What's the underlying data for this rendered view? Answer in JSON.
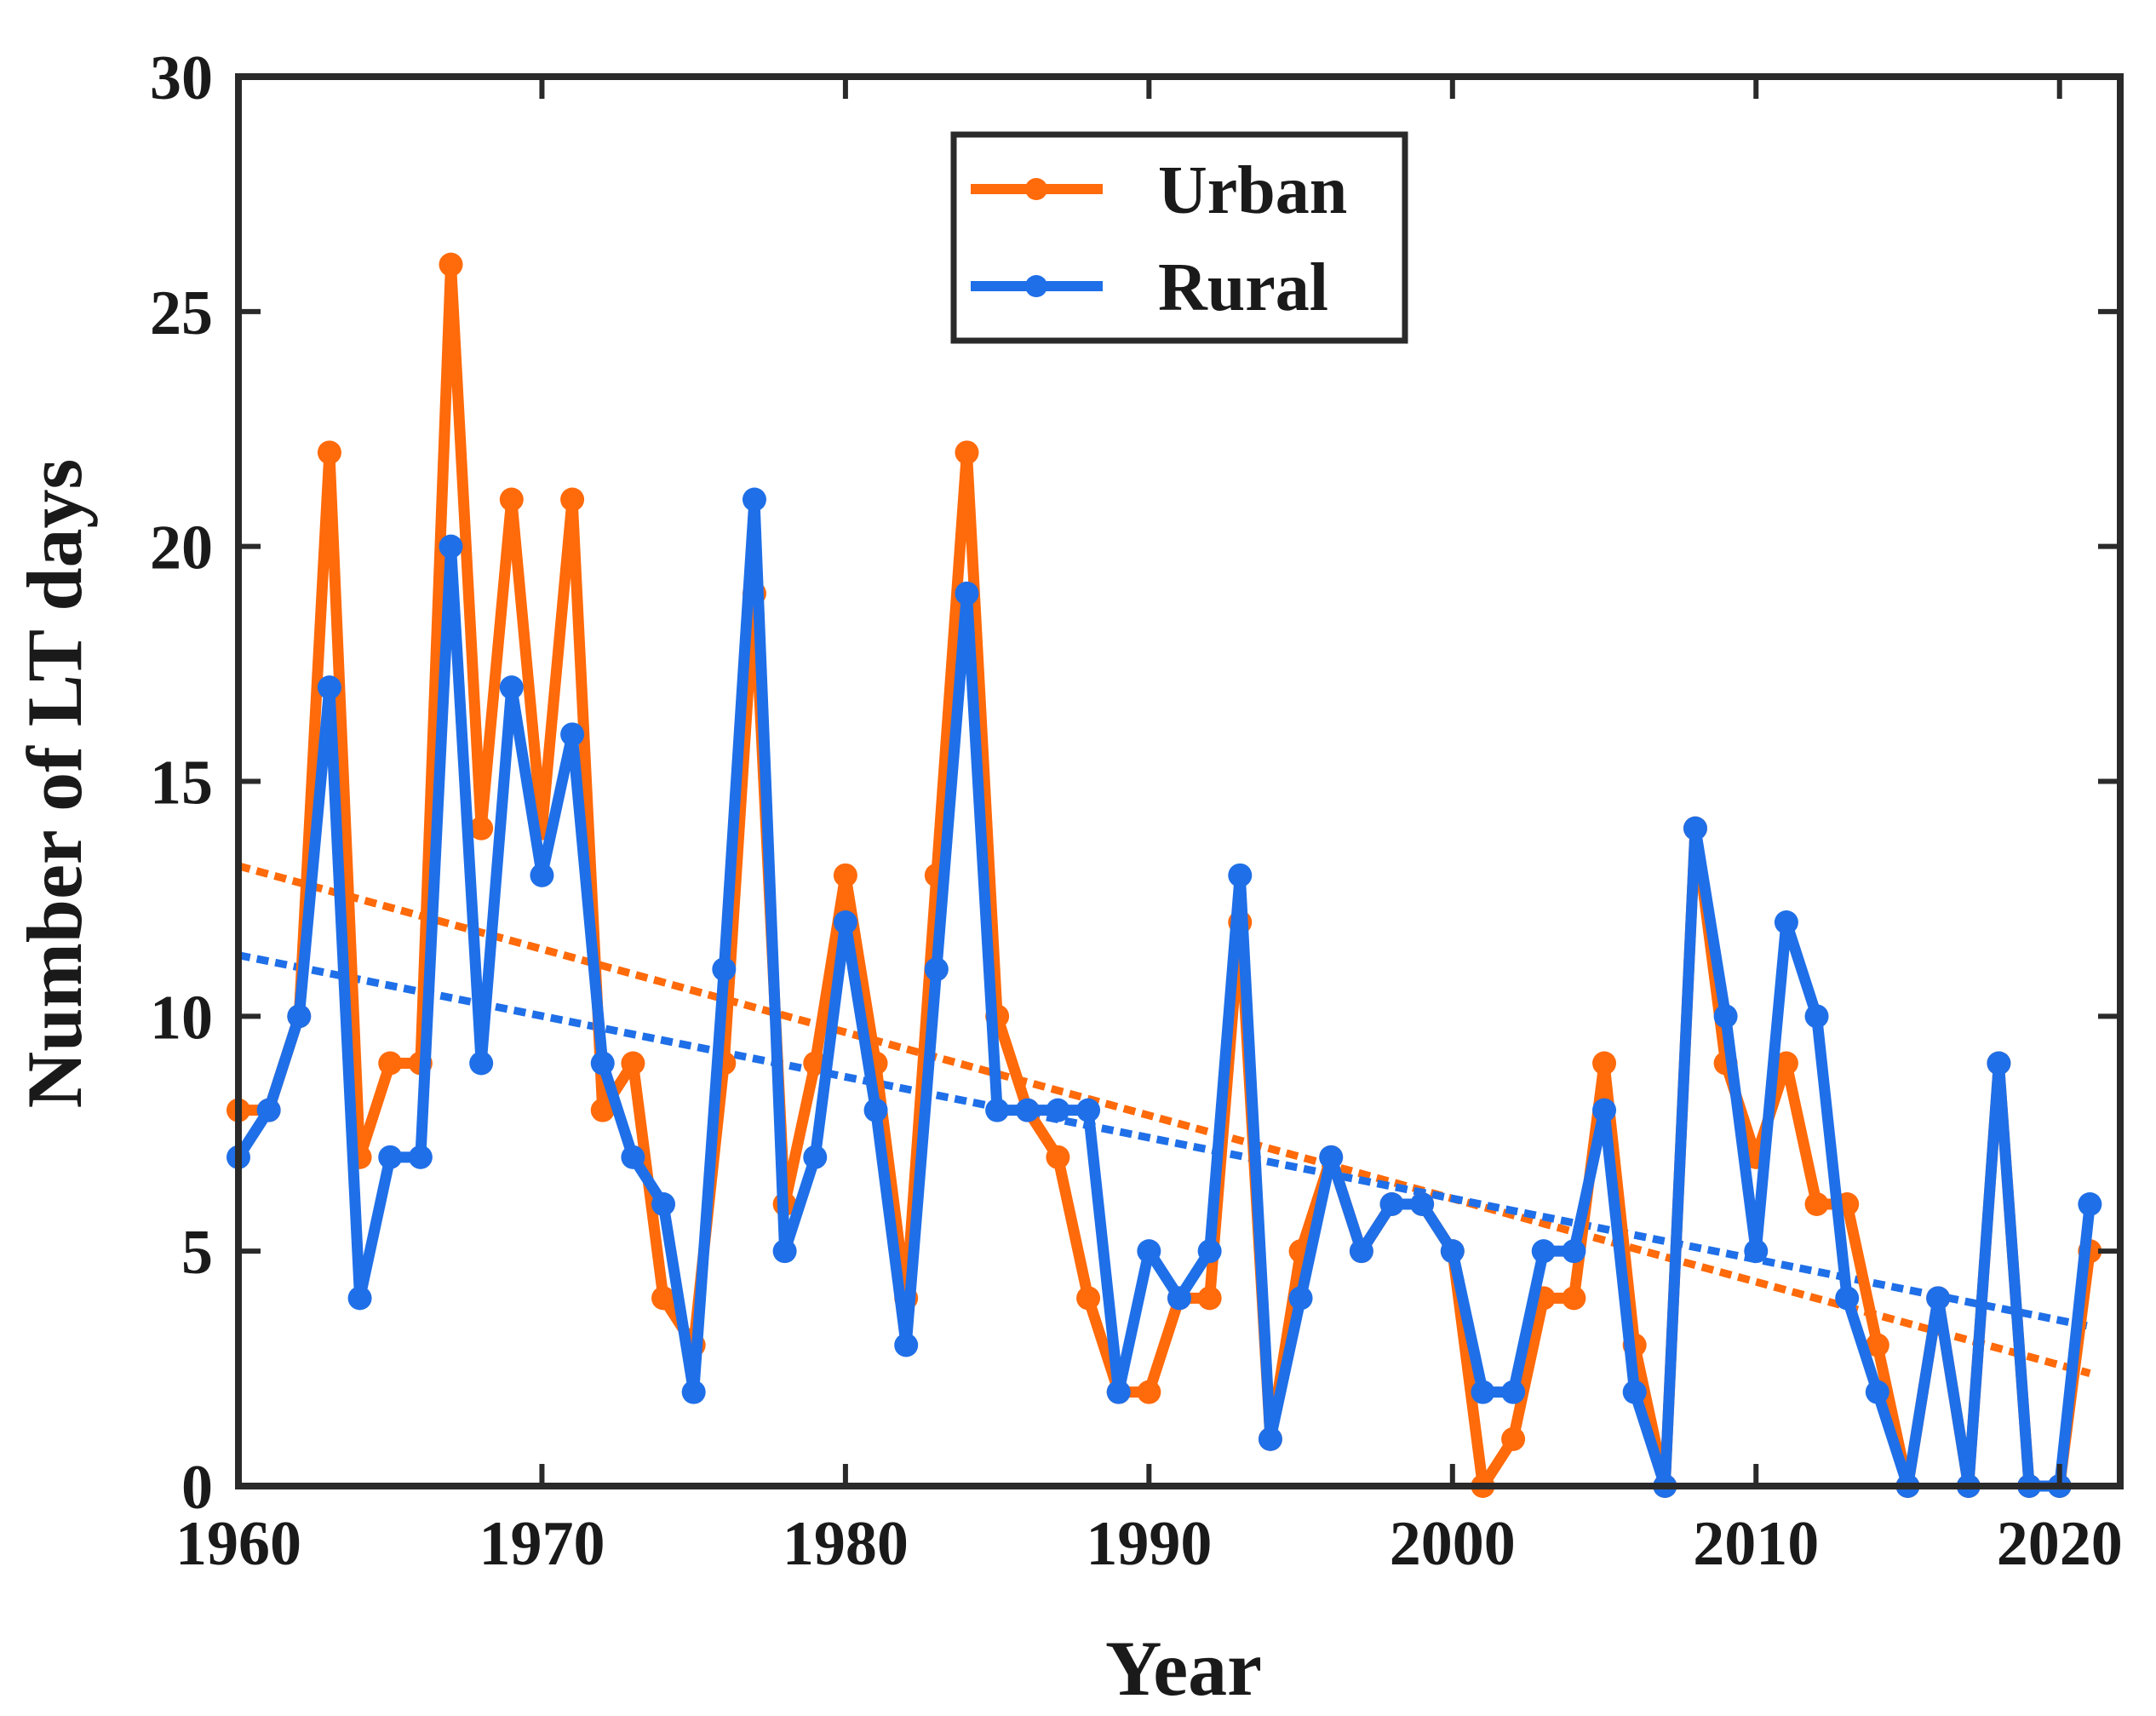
{
  "chart_data": {
    "type": "line",
    "title": "",
    "xlabel": "Year",
    "ylabel": "Number of LT days",
    "xlim": [
      1960,
      2022
    ],
    "ylim": [
      0,
      30
    ],
    "xticks": [
      1960,
      1970,
      1980,
      1990,
      2000,
      2010,
      2020
    ],
    "yticks": [
      0,
      5,
      10,
      15,
      20,
      25,
      30
    ],
    "grid": false,
    "legend_position": "top-center",
    "x": [
      1960,
      1961,
      1962,
      1963,
      1964,
      1965,
      1966,
      1967,
      1968,
      1969,
      1970,
      1971,
      1972,
      1973,
      1974,
      1975,
      1976,
      1977,
      1978,
      1979,
      1980,
      1981,
      1982,
      1983,
      1984,
      1985,
      1986,
      1987,
      1988,
      1989,
      1990,
      1991,
      1992,
      1993,
      1994,
      1995,
      1996,
      1997,
      1998,
      1999,
      2000,
      2001,
      2002,
      2003,
      2004,
      2005,
      2006,
      2007,
      2008,
      2009,
      2010,
      2011,
      2012,
      2013,
      2014,
      2015,
      2016,
      2017,
      2018,
      2019,
      2020,
      2021
    ],
    "series": [
      {
        "name": "Urban",
        "color": "#ff6a0a",
        "values": [
          8,
          8,
          10,
          22,
          7,
          9,
          9,
          26,
          14,
          21,
          14,
          21,
          8,
          9,
          4,
          3,
          9,
          19,
          6,
          9,
          13,
          9,
          4,
          13,
          22,
          10,
          8,
          7,
          4,
          2,
          2,
          4,
          4,
          12,
          1,
          5,
          7,
          5,
          6,
          6,
          5,
          0,
          1,
          4,
          4,
          9,
          3,
          0,
          14,
          9,
          7,
          9,
          6,
          6,
          3,
          0,
          4,
          0,
          9,
          0,
          0,
          5
        ]
      },
      {
        "name": "Rural",
        "color": "#1f6fe8",
        "values": [
          7,
          8,
          10,
          17,
          4,
          7,
          7,
          20,
          9,
          17,
          13,
          16,
          9,
          7,
          6,
          2,
          11,
          21,
          5,
          7,
          12,
          8,
          3,
          11,
          19,
          8,
          8,
          8,
          8,
          2,
          5,
          4,
          5,
          13,
          1,
          4,
          7,
          5,
          6,
          6,
          5,
          2,
          2,
          5,
          5,
          8,
          2,
          0,
          14,
          10,
          5,
          12,
          10,
          4,
          2,
          0,
          4,
          0,
          9,
          0,
          0,
          6
        ]
      }
    ],
    "trendlines": [
      {
        "series": "Urban",
        "color": "#ff6a0a",
        "start": [
          1960,
          13.2
        ],
        "end": [
          2021,
          2.4
        ]
      },
      {
        "series": "Rural",
        "color": "#1f6fe8",
        "start": [
          1960,
          11.3
        ],
        "end": [
          2021,
          3.4
        ]
      }
    ]
  }
}
